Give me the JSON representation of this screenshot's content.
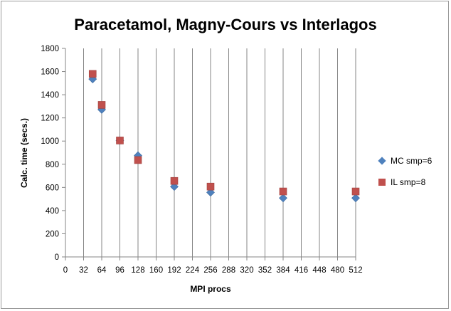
{
  "chart_data": {
    "type": "scatter",
    "title": "Paracetamol, Magny-Cours vs Interlagos",
    "xlabel": "MPI procs",
    "ylabel": "Calc. time (secs.)",
    "xlim": [
      0,
      512
    ],
    "ylim": [
      0,
      1800
    ],
    "x_ticks": [
      0,
      32,
      64,
      96,
      128,
      160,
      192,
      224,
      256,
      288,
      320,
      352,
      384,
      416,
      448,
      480,
      512
    ],
    "y_ticks": [
      0,
      200,
      400,
      600,
      800,
      1000,
      1200,
      1400,
      1600,
      1800
    ],
    "grid": "vertical",
    "legend_position": "right",
    "series": [
      {
        "name": "MC smp=6",
        "marker": "diamond",
        "color": "#4f81bd",
        "points": [
          {
            "x": 48,
            "y": 1535
          },
          {
            "x": 64,
            "y": 1272
          },
          {
            "x": 96,
            "y": 1005
          },
          {
            "x": 128,
            "y": 875
          },
          {
            "x": 192,
            "y": 607
          },
          {
            "x": 256,
            "y": 557
          },
          {
            "x": 384,
            "y": 508
          },
          {
            "x": 512,
            "y": 508
          }
        ]
      },
      {
        "name": "IL smp=8",
        "marker": "square",
        "color": "#c0504d",
        "points": [
          {
            "x": 48,
            "y": 1580
          },
          {
            "x": 64,
            "y": 1312
          },
          {
            "x": 96,
            "y": 1005
          },
          {
            "x": 128,
            "y": 836
          },
          {
            "x": 192,
            "y": 656
          },
          {
            "x": 256,
            "y": 607
          },
          {
            "x": 384,
            "y": 565
          },
          {
            "x": 512,
            "y": 565
          }
        ]
      }
    ]
  }
}
